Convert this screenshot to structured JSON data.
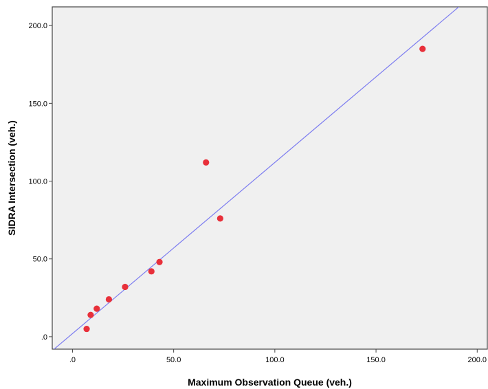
{
  "chart_data": {
    "type": "scatter",
    "xlabel": "Maximum Observation Queue (veh.)",
    "ylabel": "SIDRA Intersection (veh.)",
    "xlim": [
      -10,
      205
    ],
    "ylim": [
      -8,
      212
    ],
    "x_ticks": [
      0,
      50,
      100,
      150,
      200
    ],
    "y_ticks": [
      0,
      50,
      100,
      150,
      200
    ],
    "x_tick_labels": [
      ".0",
      "50.0",
      "100.0",
      "150.0",
      "200.0"
    ],
    "y_tick_labels": [
      ".0",
      "50.0",
      "100.0",
      "150.0",
      "200.0"
    ],
    "grid": false,
    "points": [
      {
        "x": 7,
        "y": 5
      },
      {
        "x": 9,
        "y": 14
      },
      {
        "x": 12,
        "y": 18
      },
      {
        "x": 18,
        "y": 24
      },
      {
        "x": 26,
        "y": 32
      },
      {
        "x": 39,
        "y": 42
      },
      {
        "x": 43,
        "y": 48
      },
      {
        "x": 66,
        "y": 112
      },
      {
        "x": 73,
        "y": 76
      },
      {
        "x": 173,
        "y": 185
      }
    ],
    "fit_line": {
      "slope": 1.1,
      "intercept": 2
    },
    "colors": {
      "plot_background": "#f0f0f0",
      "points": "#e8303a",
      "fit_line": "#7d7df0",
      "frame": "#444444"
    }
  }
}
